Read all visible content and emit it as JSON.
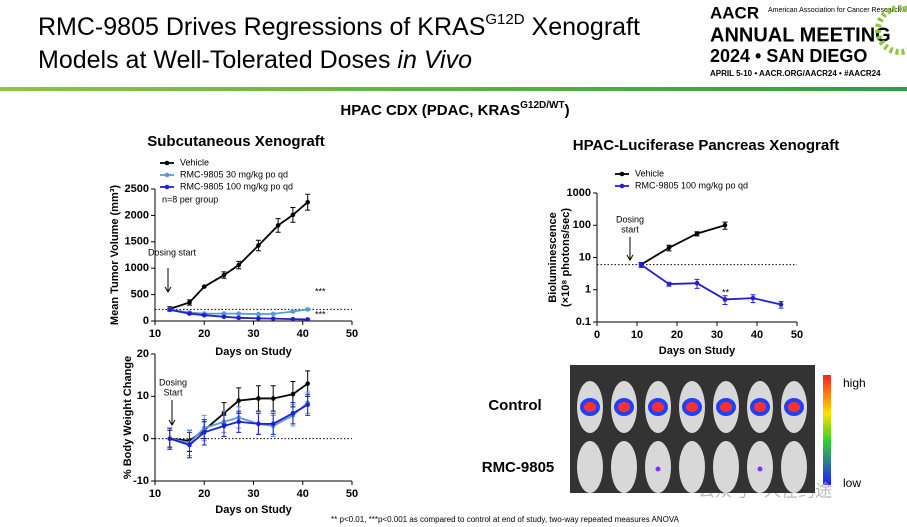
{
  "header": {
    "title_line1": [
      "RMC-9805 Drives Regressions of KRAS",
      "G12D",
      " Xenograft"
    ],
    "title_line2": [
      "Models at Well-Tolerated Doses ",
      "in Vivo"
    ],
    "logo": {
      "name": "AACR",
      "org": "American Association for Cancer Research®",
      "event": "ANNUAL MEETING",
      "year": "2024 • SAN DIEGO",
      "info": "APRIL 5-10 • AACR.ORG/AACR24 • #AACR24"
    }
  },
  "subtitle": [
    "HPAC CDX (PDAC, KRAS",
    "G12D/WT",
    ")"
  ],
  "chart_data": [
    {
      "type": "line",
      "title": "Subcutaneous Xenograft",
      "xlabel": "Days on Study",
      "ylabel": "Mean Tumor Volume (mm³)",
      "xlim": [
        10,
        50
      ],
      "xticks": [
        10,
        20,
        30,
        40,
        50
      ],
      "ylim": [
        0,
        2500
      ],
      "yticks": [
        0,
        500,
        1000,
        1500,
        2000,
        2500
      ],
      "hline": 220,
      "legend_note": "n=8 per group",
      "annotations": [
        "Dosing start",
        "***",
        "***"
      ],
      "series": [
        {
          "name": "Vehicle",
          "color": "#000000",
          "x": [
            13,
            17,
            20,
            24,
            27,
            31,
            35,
            38,
            41
          ],
          "values": [
            230,
            350,
            650,
            870,
            1060,
            1430,
            1810,
            2010,
            2250
          ],
          "errors": [
            40,
            50,
            0,
            60,
            70,
            100,
            130,
            140,
            150
          ]
        },
        {
          "name": "RMC-9805 30 mg/kg po qd",
          "color": "#5b9bd5",
          "x": [
            13,
            17,
            20,
            24,
            27,
            31,
            34,
            38,
            41
          ],
          "values": [
            220,
            160,
            140,
            140,
            140,
            130,
            135,
            180,
            220
          ],
          "errors": [
            20,
            15,
            15,
            15,
            15,
            15,
            15,
            20,
            25
          ]
        },
        {
          "name": "RMC-9805 100 mg/kg po qd",
          "color": "#1f1fd6",
          "x": [
            13,
            17,
            20,
            24,
            27,
            31,
            34,
            38,
            41
          ],
          "values": [
            210,
            140,
            110,
            80,
            60,
            50,
            45,
            35,
            30
          ],
          "errors": [
            20,
            15,
            15,
            10,
            10,
            8,
            8,
            5,
            5
          ]
        }
      ]
    },
    {
      "type": "line",
      "xlabel": "Days on Study",
      "ylabel": "% Body Weight Change",
      "xlim": [
        10,
        50
      ],
      "xticks": [
        10,
        20,
        30,
        40,
        50
      ],
      "ylim": [
        -10,
        20
      ],
      "yticks": [
        -10,
        0,
        10,
        20
      ],
      "hline": 0,
      "annotations": [
        "Dosing",
        "Start"
      ],
      "series": [
        {
          "color": "#000000",
          "x": [
            13,
            17,
            20,
            24,
            27,
            31,
            34,
            38,
            41
          ],
          "values": [
            0,
            -0.5,
            2,
            6,
            9,
            9.5,
            9.5,
            10.5,
            13
          ],
          "errors": [
            2,
            2.5,
            2,
            2.5,
            3,
            3,
            3,
            3,
            3
          ]
        },
        {
          "color": "#5b9bd5",
          "x": [
            13,
            17,
            20,
            24,
            27,
            31,
            34,
            38,
            41
          ],
          "values": [
            0,
            -1,
            2.5,
            4,
            5,
            3.5,
            3,
            5.5,
            8.5
          ],
          "errors": [
            2.5,
            3,
            3,
            2.5,
            2.5,
            2.5,
            2.5,
            2.5,
            2.5
          ]
        },
        {
          "color": "#1f1fd6",
          "x": [
            13,
            17,
            20,
            24,
            27,
            31,
            34,
            38,
            41
          ],
          "values": [
            0,
            -1.5,
            1.5,
            3,
            4,
            3.5,
            3.5,
            6,
            8
          ],
          "errors": [
            2.5,
            3,
            3,
            2.5,
            2.5,
            2.5,
            2.5,
            2.5,
            2.5
          ]
        }
      ]
    },
    {
      "type": "line",
      "title": "HPAC-Luciferase Pancreas Xenograft",
      "xlabel": "Days on Study",
      "ylabel": [
        "Bioluminescence",
        "(×10⁸ photons/sec)"
      ],
      "log_y": true,
      "xlim": [
        0,
        50
      ],
      "xticks": [
        0,
        10,
        20,
        30,
        40,
        50
      ],
      "ylim": [
        0.1,
        1000
      ],
      "yticks": [
        0.1,
        1,
        10,
        100,
        1000
      ],
      "hline": 6,
      "annotations": [
        "Dosing",
        "start",
        "**"
      ],
      "series": [
        {
          "name": "Vehicle",
          "color": "#000000",
          "x": [
            11,
            18,
            25,
            32
          ],
          "values": [
            6,
            20,
            55,
            100
          ],
          "errors": [
            1,
            4,
            8,
            25
          ]
        },
        {
          "name": "RMC-9805 100 mg/kg po qd",
          "color": "#1f1fd6",
          "x": [
            11,
            18,
            25,
            32,
            39,
            46
          ],
          "values": [
            6,
            1.5,
            1.6,
            0.5,
            0.55,
            0.35
          ],
          "errors": [
            1,
            0.2,
            0.5,
            0.15,
            0.15,
            0.08
          ]
        }
      ]
    }
  ],
  "imaging": {
    "rows": [
      "Control",
      "RMC-9805"
    ],
    "scale_high": "high",
    "scale_low": "low"
  },
  "footnote": "** p<0.01, ***p<0.001 as compared to control at end of study, two-way repeated measures ANOVA",
  "watermark": "公众号 · 人在约途"
}
